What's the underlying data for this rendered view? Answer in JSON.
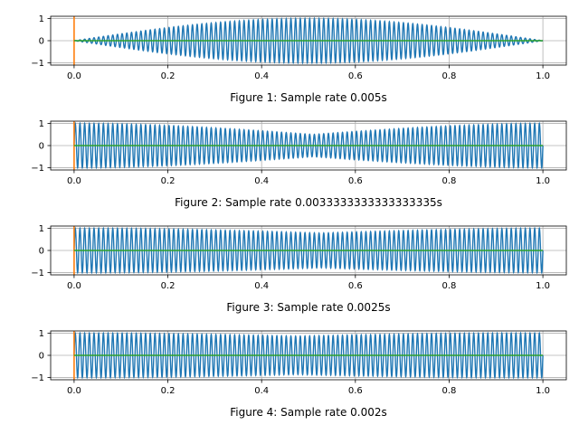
{
  "chart_data": [
    {
      "type": "line",
      "xlabel": "Figure 1: Sample rate 0.005s",
      "xlim": [
        -0.05,
        1.05
      ],
      "ylim": [
        -1.1,
        1.1
      ],
      "xticks": [
        0.0,
        0.2,
        0.4,
        0.6,
        0.8,
        1.0
      ],
      "xtick_labels": [
        "0.0",
        "0.2",
        "0.4",
        "0.6",
        "0.8",
        "1.0"
      ],
      "yticks": [
        -1,
        0,
        1
      ],
      "ytick_labels": [
        "−1",
        "0",
        "1"
      ],
      "grid": true,
      "sample_rate": 0.005,
      "envelope": "sin(pi*t)",
      "oscillations": 100,
      "colors": {
        "signal": "#1f77b4",
        "marker": "#ff7f0e",
        "zero": "#2ca02c"
      }
    },
    {
      "type": "line",
      "xlabel": "Figure 2: Sample rate 0.0033333333333333335s",
      "xlim": [
        -0.05,
        1.05
      ],
      "ylim": [
        -1.1,
        1.1
      ],
      "xticks": [
        0.0,
        0.2,
        0.4,
        0.6,
        0.8,
        1.0
      ],
      "xtick_labels": [
        "0.0",
        "0.2",
        "0.4",
        "0.6",
        "0.8",
        "1.0"
      ],
      "yticks": [
        -1,
        0,
        1
      ],
      "ytick_labels": [
        "−1",
        "0",
        "1"
      ],
      "grid": true,
      "sample_rate": 0.0033333333333333335,
      "envelope": "|cos(pi*t/2)| beating",
      "oscillations": 100,
      "colors": {
        "signal": "#1f77b4",
        "marker": "#ff7f0e",
        "zero": "#2ca02c"
      }
    },
    {
      "type": "line",
      "xlabel": "Figure 3: Sample rate 0.0025s",
      "xlim": [
        -0.05,
        1.05
      ],
      "ylim": [
        -1.1,
        1.1
      ],
      "xticks": [
        0.0,
        0.2,
        0.4,
        0.6,
        0.8,
        1.0
      ],
      "xtick_labels": [
        "0.0",
        "0.2",
        "0.4",
        "0.6",
        "0.8",
        "1.0"
      ],
      "yticks": [
        -1,
        0,
        1
      ],
      "ytick_labels": [
        "−1",
        "0",
        "1"
      ],
      "grid": true,
      "sample_rate": 0.0025,
      "envelope": "|cos(pi*t/4)| beating",
      "oscillations": 100,
      "colors": {
        "signal": "#1f77b4",
        "marker": "#ff7f0e",
        "zero": "#2ca02c"
      }
    },
    {
      "type": "line",
      "xlabel": "Figure 4: Sample rate 0.002s",
      "xlim": [
        -0.05,
        1.05
      ],
      "ylim": [
        -1.1,
        1.1
      ],
      "xticks": [
        0.0,
        0.2,
        0.4,
        0.6,
        0.8,
        1.0
      ],
      "xtick_labels": [
        "0.0",
        "0.2",
        "0.4",
        "0.6",
        "0.8",
        "1.0"
      ],
      "yticks": [
        -1,
        0,
        1
      ],
      "ytick_labels": [
        "−1",
        "0",
        "1"
      ],
      "grid": true,
      "sample_rate": 0.002,
      "envelope": "|cos(pi*t/5)| beating",
      "oscillations": 100,
      "colors": {
        "signal": "#1f77b4",
        "marker": "#ff7f0e",
        "zero": "#2ca02c"
      }
    }
  ]
}
